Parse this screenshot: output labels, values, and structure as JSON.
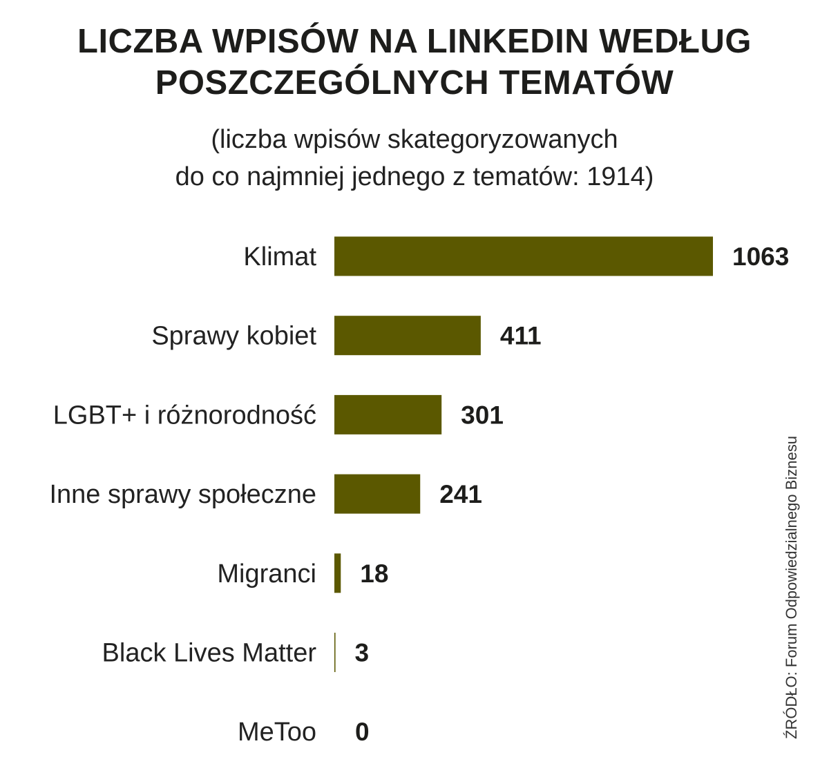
{
  "chart_data": {
    "type": "bar",
    "orientation": "horizontal",
    "title_lines": [
      "LICZBA WPISÓW NA LINKEDIN WEDŁUG",
      "POSZCZEGÓLNYCH TEMATÓW"
    ],
    "subtitle_lines": [
      "(liczba wpisów skategoryzowanych",
      "do co najmniej jednego z tematów: 1914)"
    ],
    "categories": [
      "Klimat",
      "Sprawy kobiet",
      "LGBT+ i różnorodność",
      "Inne sprawy społeczne",
      "Migranci",
      "Black Lives Matter",
      "MeToo"
    ],
    "values": [
      1063,
      411,
      301,
      241,
      18,
      3,
      0
    ],
    "xlim": [
      0,
      1063
    ],
    "grid": false,
    "bar_color": "#5b5800",
    "source": "ŹRÓDŁO: Forum Odpowiedzialnego Biznesu"
  }
}
